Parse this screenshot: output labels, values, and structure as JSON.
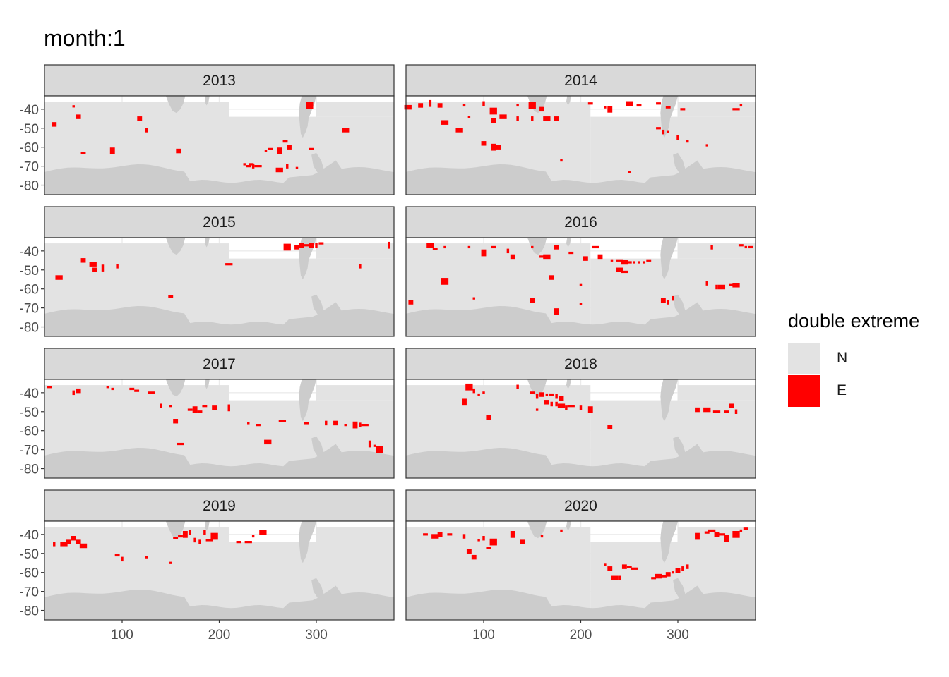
{
  "title": "month:1",
  "chart_data": {
    "type": "heatmap",
    "facet_by": "year",
    "facets": [
      "2013",
      "2014",
      "2015",
      "2016",
      "2017",
      "2018",
      "2019",
      "2020"
    ],
    "layout": {
      "ncol": 2,
      "nrow": 4
    },
    "xlim": [
      20,
      380
    ],
    "ylim": [
      -85,
      -33
    ],
    "x_ticks": [
      100,
      200,
      300
    ],
    "y_ticks": [
      -40,
      -50,
      -60,
      -70,
      -80
    ],
    "x_tick_labels": [
      "100",
      "200",
      "300"
    ],
    "y_tick_labels": [
      "-40",
      "-50",
      "-60",
      "-70",
      "-80"
    ],
    "xlabel": "",
    "ylabel": "",
    "grid": true,
    "legend": {
      "title": "double extreme",
      "position": "right",
      "items": [
        {
          "label": "N",
          "color": "#e3e3e3"
        },
        {
          "label": "E",
          "color": "#ff0000"
        }
      ]
    },
    "land_color": "#cccccc",
    "extremes": {
      "2013": [
        [
          50,
          -38.5
        ],
        [
          30,
          -48
        ],
        [
          55,
          -44
        ],
        [
          118,
          -45
        ],
        [
          125,
          -51
        ],
        [
          60,
          -63
        ],
        [
          90,
          -62
        ],
        [
          158,
          -62
        ],
        [
          262,
          -62
        ],
        [
          253,
          -61
        ],
        [
          248,
          -62
        ],
        [
          268,
          -57
        ],
        [
          272,
          -60
        ],
        [
          280,
          -71
        ],
        [
          262,
          -72
        ],
        [
          270,
          -70
        ],
        [
          230,
          -70
        ],
        [
          235,
          -70
        ],
        [
          240,
          -70
        ],
        [
          295,
          -61
        ],
        [
          330,
          -51
        ],
        [
          293,
          -38
        ],
        [
          226,
          -69
        ],
        [
          233,
          -69
        ]
      ],
      "2014": [
        [
          22,
          -39
        ],
        [
          35,
          -38
        ],
        [
          45,
          -37
        ],
        [
          55,
          -38
        ],
        [
          80,
          -38
        ],
        [
          100,
          -37
        ],
        [
          110,
          -41
        ],
        [
          135,
          -38
        ],
        [
          150,
          -38
        ],
        [
          160,
          -40
        ],
        [
          210,
          -37
        ],
        [
          225,
          -39
        ],
        [
          230,
          -40
        ],
        [
          250,
          -37
        ],
        [
          260,
          -38
        ],
        [
          280,
          -37
        ],
        [
          290,
          -39
        ],
        [
          305,
          -40
        ],
        [
          60,
          -47
        ],
        [
          75,
          -51
        ],
        [
          85,
          -44
        ],
        [
          110,
          -46
        ],
        [
          120,
          -44
        ],
        [
          135,
          -45
        ],
        [
          150,
          -45
        ],
        [
          165,
          -45
        ],
        [
          175,
          -45
        ],
        [
          100,
          -58
        ],
        [
          110,
          -60
        ],
        [
          115,
          -60
        ],
        [
          280,
          -50
        ],
        [
          285,
          -52
        ],
        [
          300,
          -55
        ],
        [
          310,
          -57
        ],
        [
          330,
          -59
        ],
        [
          360,
          -40
        ],
        [
          365,
          -38
        ],
        [
          250,
          -73
        ],
        [
          180,
          -67
        ],
        [
          290,
          -52
        ]
      ],
      "2015": [
        [
          270,
          -38
        ],
        [
          280,
          -38
        ],
        [
          285,
          -37
        ],
        [
          290,
          -37
        ],
        [
          295,
          -37
        ],
        [
          300,
          -37
        ],
        [
          305,
          -36
        ],
        [
          60,
          -45
        ],
        [
          70,
          -47
        ],
        [
          72,
          -50
        ],
        [
          80,
          -49
        ],
        [
          95,
          -48
        ],
        [
          35,
          -54
        ],
        [
          150,
          -64
        ],
        [
          210,
          -47
        ],
        [
          345,
          -48
        ],
        [
          375,
          -37
        ]
      ],
      "2016": [
        [
          45,
          -37
        ],
        [
          50,
          -39
        ],
        [
          60,
          -38
        ],
        [
          85,
          -38
        ],
        [
          100,
          -41
        ],
        [
          110,
          -38
        ],
        [
          125,
          -40
        ],
        [
          130,
          -43
        ],
        [
          150,
          -38
        ],
        [
          160,
          -43
        ],
        [
          165,
          -43
        ],
        [
          175,
          -38
        ],
        [
          190,
          -41
        ],
        [
          205,
          -44
        ],
        [
          215,
          -38
        ],
        [
          220,
          -43
        ],
        [
          232,
          -45
        ],
        [
          240,
          -45
        ],
        [
          245,
          -46
        ],
        [
          250,
          -46
        ],
        [
          255,
          -46
        ],
        [
          260,
          -46
        ],
        [
          265,
          -46
        ],
        [
          270,
          -45
        ],
        [
          240,
          -50
        ],
        [
          245,
          -51
        ],
        [
          200,
          -58
        ],
        [
          170,
          -54
        ],
        [
          60,
          -56
        ],
        [
          90,
          -65
        ],
        [
          150,
          -66
        ],
        [
          285,
          -66
        ],
        [
          290,
          -67
        ],
        [
          295,
          -65
        ],
        [
          330,
          -57
        ],
        [
          340,
          -59
        ],
        [
          345,
          -59
        ],
        [
          355,
          -58
        ],
        [
          360,
          -58
        ],
        [
          370,
          -38
        ],
        [
          375,
          -38
        ],
        [
          365,
          -37
        ],
        [
          200,
          -68
        ],
        [
          175,
          -72
        ],
        [
          25,
          -67
        ],
        [
          335,
          -38
        ]
      ],
      "2017": [
        [
          50,
          -40
        ],
        [
          55,
          -39
        ],
        [
          85,
          -37
        ],
        [
          90,
          -38
        ],
        [
          110,
          -38
        ],
        [
          115,
          -39
        ],
        [
          130,
          -40
        ],
        [
          150,
          -47
        ],
        [
          170,
          -49
        ],
        [
          175,
          -49
        ],
        [
          180,
          -50
        ],
        [
          185,
          -47
        ],
        [
          195,
          -48
        ],
        [
          140,
          -47
        ],
        [
          155,
          -55
        ],
        [
          210,
          -48
        ],
        [
          230,
          -56
        ],
        [
          240,
          -57
        ],
        [
          265,
          -55
        ],
        [
          290,
          -56
        ],
        [
          310,
          -56
        ],
        [
          320,
          -56
        ],
        [
          330,
          -57
        ],
        [
          340,
          -57
        ],
        [
          345,
          -57
        ],
        [
          350,
          -57
        ],
        [
          355,
          -67
        ],
        [
          360,
          -68
        ],
        [
          365,
          -70
        ],
        [
          160,
          -67
        ],
        [
          250,
          -66
        ],
        [
          25,
          -37
        ]
      ],
      "2018": [
        [
          85,
          -37
        ],
        [
          90,
          -39
        ],
        [
          95,
          -41
        ],
        [
          100,
          -40
        ],
        [
          80,
          -45
        ],
        [
          135,
          -37
        ],
        [
          150,
          -40
        ],
        [
          155,
          -42
        ],
        [
          160,
          -41
        ],
        [
          165,
          -41
        ],
        [
          170,
          -41
        ],
        [
          175,
          -42
        ],
        [
          180,
          -43
        ],
        [
          165,
          -45
        ],
        [
          170,
          -46
        ],
        [
          175,
          -46
        ],
        [
          180,
          -47
        ],
        [
          185,
          -48
        ],
        [
          155,
          -49
        ],
        [
          190,
          -47
        ],
        [
          200,
          -48
        ],
        [
          210,
          -49
        ],
        [
          230,
          -58
        ],
        [
          320,
          -49
        ],
        [
          330,
          -49
        ],
        [
          340,
          -50
        ],
        [
          350,
          -50
        ],
        [
          355,
          -47
        ],
        [
          360,
          -50
        ],
        [
          105,
          -53
        ]
      ],
      "2019": [
        [
          30,
          -45
        ],
        [
          40,
          -45
        ],
        [
          45,
          -44
        ],
        [
          50,
          -42
        ],
        [
          55,
          -44
        ],
        [
          60,
          -46
        ],
        [
          95,
          -51
        ],
        [
          100,
          -53
        ],
        [
          125,
          -52
        ],
        [
          150,
          -55
        ],
        [
          155,
          -42
        ],
        [
          160,
          -41
        ],
        [
          165,
          -40
        ],
        [
          170,
          -39
        ],
        [
          175,
          -43
        ],
        [
          180,
          -44
        ],
        [
          185,
          -39
        ],
        [
          190,
          -43
        ],
        [
          195,
          -41
        ],
        [
          220,
          -44
        ],
        [
          230,
          -44
        ],
        [
          235,
          -41
        ],
        [
          245,
          -39
        ]
      ],
      "2020": [
        [
          40,
          -40
        ],
        [
          50,
          -41
        ],
        [
          55,
          -40
        ],
        [
          65,
          -40
        ],
        [
          80,
          -41
        ],
        [
          95,
          -43
        ],
        [
          100,
          -42
        ],
        [
          105,
          -47
        ],
        [
          110,
          -44
        ],
        [
          130,
          -40
        ],
        [
          140,
          -44
        ],
        [
          160,
          -41
        ],
        [
          180,
          -38
        ],
        [
          225,
          -56
        ],
        [
          230,
          -58
        ],
        [
          235,
          -63
        ],
        [
          240,
          -63
        ],
        [
          245,
          -57
        ],
        [
          250,
          -57
        ],
        [
          255,
          -58
        ],
        [
          275,
          -63
        ],
        [
          280,
          -62
        ],
        [
          285,
          -62
        ],
        [
          290,
          -61
        ],
        [
          295,
          -60
        ],
        [
          300,
          -59
        ],
        [
          305,
          -58
        ],
        [
          310,
          -57
        ],
        [
          320,
          -41
        ],
        [
          330,
          -39
        ],
        [
          335,
          -38
        ],
        [
          340,
          -40
        ],
        [
          345,
          -40
        ],
        [
          350,
          -42
        ],
        [
          360,
          -40
        ],
        [
          365,
          -38
        ],
        [
          370,
          -37
        ],
        [
          85,
          -49
        ],
        [
          90,
          -52
        ]
      ]
    }
  }
}
